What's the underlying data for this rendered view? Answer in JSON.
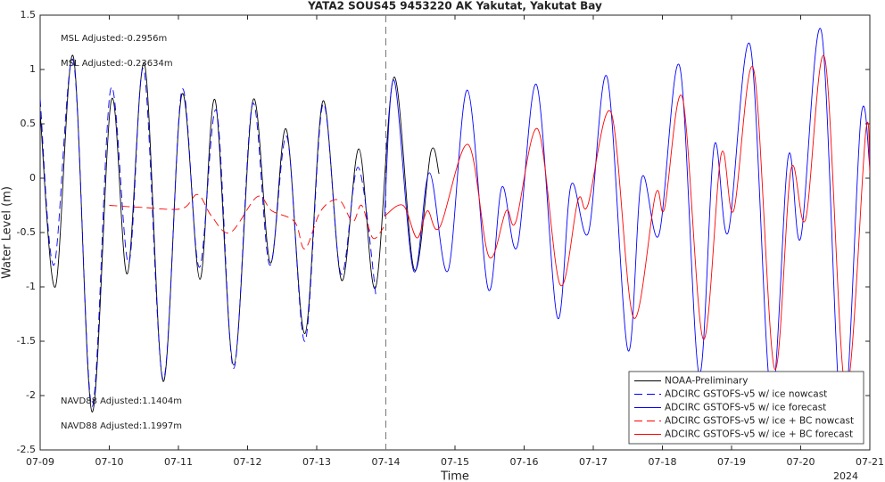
{
  "chart_data": {
    "type": "line",
    "title": "YATA2 SOUS45 9453220 AK Yakutat, Yakutat Bay",
    "xlabel": "Time",
    "ylabel": "Water Level (m)",
    "xlabel_year": "2024",
    "xlim": [
      0,
      12
    ],
    "xticks": [
      {
        "value": 0,
        "label": "07-09"
      },
      {
        "value": 1,
        "label": "07-10"
      },
      {
        "value": 2,
        "label": "07-11"
      },
      {
        "value": 3,
        "label": "07-12"
      },
      {
        "value": 4,
        "label": "07-13"
      },
      {
        "value": 5,
        "label": "07-14"
      },
      {
        "value": 6,
        "label": "07-15"
      },
      {
        "value": 7,
        "label": "07-16"
      },
      {
        "value": 8,
        "label": "07-17"
      },
      {
        "value": 9,
        "label": "07-18"
      },
      {
        "value": 10,
        "label": "07-19"
      },
      {
        "value": 11,
        "label": "07-20"
      },
      {
        "value": 12,
        "label": "07-21"
      }
    ],
    "ylim": [
      -2.5,
      1.5
    ],
    "yticks": [
      -2.5,
      -2,
      -1.5,
      -1,
      -0.5,
      0,
      0.5,
      1,
      1.5
    ],
    "divider_x": 5,
    "legend": "lower right",
    "annotations": [
      {
        "text": "MSL Adjusted:-0.2956m",
        "color": "#0000ff"
      },
      {
        "text": "MSL Adjusted:-0.23634m",
        "color": "#ff0000"
      },
      {
        "text": "NAVD88 Adjusted:1.1404m",
        "color": "#0000ff"
      },
      {
        "text": "NAVD88 Adjusted:1.1997m",
        "color": "#ff0000"
      }
    ],
    "series": [
      {
        "name": "NOAA-Preliminary",
        "color": "#000000",
        "linestyle": "solid",
        "x": [
          0,
          0.22,
          0.48,
          0.75,
          1.03,
          1.26,
          1.51,
          1.78,
          2.05,
          2.31,
          2.53,
          2.8,
          3.08,
          3.33,
          3.56,
          3.83,
          4.09,
          4.36,
          4.61,
          4.85,
          5.12,
          5.41,
          5.65,
          5.77
        ],
        "values": [
          0.6,
          -1.0,
          1.12,
          -2.15,
          0.72,
          -0.88,
          1.05,
          -1.87,
          0.77,
          -0.93,
          0.72,
          -1.72,
          0.72,
          -0.78,
          0.45,
          -1.43,
          0.71,
          -0.94,
          0.27,
          -1.01,
          0.93,
          -0.84,
          0.24,
          0.04
        ]
      },
      {
        "name": "ADCIRC GSTOFS-v5  w/ ice nowcast",
        "color": "#0000ff",
        "linestyle": "dashed",
        "x": [
          0,
          0.2,
          0.48,
          0.75,
          1.02,
          1.28,
          1.5,
          1.78,
          2.05,
          2.3,
          2.55,
          2.8,
          3.07,
          3.32,
          3.57,
          3.83,
          4.09,
          4.35,
          4.6,
          4.86
        ],
        "values": [
          0.73,
          -0.8,
          1.08,
          -2.1,
          0.82,
          -0.78,
          1.0,
          -1.85,
          0.81,
          -0.82,
          0.62,
          -1.75,
          0.68,
          -0.8,
          0.38,
          -1.5,
          0.68,
          -0.88,
          0.1,
          -1.1
        ]
      },
      {
        "name": "ADCIRC GSTOFS-v5  w/ ice forecast",
        "color": "#0000ff",
        "linestyle": "solid",
        "x": [
          4.98,
          5.12,
          5.4,
          5.63,
          5.9,
          6.18,
          6.48,
          6.68,
          6.9,
          7.18,
          7.48,
          7.68,
          7.93,
          8.2,
          8.5,
          8.7,
          8.95,
          9.25,
          9.53,
          9.75,
          9.95,
          10.27,
          10.57,
          10.82,
          11.0,
          11.3,
          11.6,
          11.87,
          12
        ],
        "values": [
          -0.35,
          0.9,
          -0.85,
          0.05,
          -0.85,
          0.81,
          -1.02,
          -0.08,
          -0.63,
          0.86,
          -1.28,
          -0.06,
          -0.5,
          0.93,
          -1.58,
          0.0,
          -0.52,
          1.03,
          -1.8,
          0.3,
          -0.5,
          1.22,
          -2.0,
          0.2,
          -0.55,
          1.35,
          -2.3,
          0.55,
          0.1
        ]
      },
      {
        "name": "ADCIRC GSTOFS-v5  w/ ice + BC nowcast",
        "color": "#ff0000",
        "linestyle": "dashed",
        "x": [
          1.0,
          1.5,
          2.05,
          2.28,
          2.48,
          2.75,
          3.14,
          3.35,
          3.68,
          3.83,
          4.06,
          4.32,
          4.52,
          4.65,
          4.81,
          4.97
        ],
        "values": [
          -0.25,
          -0.27,
          -0.28,
          -0.15,
          -0.35,
          -0.5,
          -0.17,
          -0.3,
          -0.4,
          -0.65,
          -0.3,
          -0.2,
          -0.4,
          -0.25,
          -0.55,
          -0.45
        ]
      },
      {
        "name": "ADCIRC GSTOFS-v5  w/ ice + BC forecast",
        "color": "#ff0000",
        "linestyle": "solid",
        "x": [
          4.98,
          5.25,
          5.45,
          5.6,
          5.78,
          6.19,
          6.49,
          6.74,
          6.88,
          7.2,
          7.52,
          7.78,
          7.92,
          8.26,
          8.58,
          8.9,
          9.03,
          9.29,
          9.59,
          9.85,
          10.03,
          10.32,
          10.62,
          10.86,
          11.07,
          11.35,
          11.65,
          11.94,
          12
        ],
        "values": [
          -0.35,
          -0.25,
          -0.55,
          -0.3,
          -0.45,
          0.31,
          -0.72,
          -0.3,
          -0.4,
          0.45,
          -0.98,
          -0.2,
          -0.25,
          0.6,
          -1.28,
          -0.15,
          -0.28,
          0.74,
          -1.48,
          0.22,
          -0.3,
          1.0,
          -1.75,
          0.08,
          -0.38,
          1.1,
          -1.95,
          0.42,
          0.05
        ]
      }
    ]
  }
}
